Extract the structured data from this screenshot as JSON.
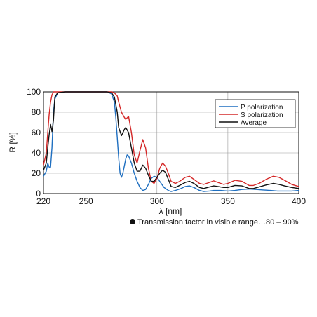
{
  "chart_data": {
    "type": "line",
    "title": "",
    "xlabel": "λ [nm]",
    "ylabel": "R [%]",
    "xlim": [
      220,
      400
    ],
    "ylim": [
      0,
      100
    ],
    "x_ticks": [
      "220",
      "250",
      "300",
      "350",
      "400"
    ],
    "y_ticks": [
      "0",
      "20",
      "40",
      "60",
      "80",
      "100"
    ],
    "grid": true,
    "legend_position": "top-right",
    "series": [
      {
        "name": "P polarization",
        "color": "#1f6fc0",
        "points": [
          [
            220,
            17
          ],
          [
            222,
            22
          ],
          [
            223,
            30
          ],
          [
            224,
            26
          ],
          [
            225,
            26
          ],
          [
            226,
            45
          ],
          [
            227,
            80
          ],
          [
            228,
            93
          ],
          [
            230,
            99
          ],
          [
            235,
            100
          ],
          [
            240,
            100
          ],
          [
            250,
            100
          ],
          [
            260,
            100
          ],
          [
            265,
            100
          ],
          [
            268,
            98
          ],
          [
            270,
            90
          ],
          [
            271,
            75
          ],
          [
            272,
            55
          ],
          [
            273,
            35
          ],
          [
            274,
            20
          ],
          [
            275,
            16
          ],
          [
            276,
            20
          ],
          [
            278,
            34
          ],
          [
            279,
            38
          ],
          [
            280,
            37
          ],
          [
            282,
            30
          ],
          [
            284,
            20
          ],
          [
            286,
            12
          ],
          [
            288,
            6
          ],
          [
            290,
            3
          ],
          [
            292,
            4
          ],
          [
            294,
            9
          ],
          [
            296,
            15
          ],
          [
            298,
            17
          ],
          [
            300,
            16
          ],
          [
            302,
            12
          ],
          [
            305,
            6
          ],
          [
            308,
            3
          ],
          [
            310,
            2
          ],
          [
            313,
            3
          ],
          [
            317,
            5
          ],
          [
            320,
            7
          ],
          [
            323,
            7.5
          ],
          [
            326,
            6
          ],
          [
            330,
            3
          ],
          [
            333,
            2
          ],
          [
            337,
            2.5
          ],
          [
            340,
            3
          ],
          [
            345,
            3
          ],
          [
            350,
            2.5
          ],
          [
            355,
            3
          ],
          [
            360,
            4
          ],
          [
            365,
            4.5
          ],
          [
            370,
            4
          ],
          [
            375,
            3.5
          ],
          [
            380,
            3
          ],
          [
            385,
            2.5
          ],
          [
            390,
            2.5
          ],
          [
            395,
            2.5
          ],
          [
            400,
            3
          ]
        ]
      },
      {
        "name": "S polarization",
        "color": "#d42828",
        "points": [
          [
            220,
            28
          ],
          [
            222,
            40
          ],
          [
            223,
            60
          ],
          [
            224,
            78
          ],
          [
            225,
            90
          ],
          [
            226,
            97
          ],
          [
            227,
            100
          ],
          [
            230,
            100
          ],
          [
            250,
            100
          ],
          [
            265,
            100
          ],
          [
            268,
            100
          ],
          [
            270,
            99
          ],
          [
            272,
            96
          ],
          [
            273,
            90
          ],
          [
            275,
            80
          ],
          [
            277,
            75
          ],
          [
            278,
            73
          ],
          [
            280,
            76
          ],
          [
            282,
            60
          ],
          [
            284,
            38
          ],
          [
            286,
            30
          ],
          [
            288,
            42
          ],
          [
            290,
            53
          ],
          [
            292,
            45
          ],
          [
            294,
            25
          ],
          [
            296,
            12
          ],
          [
            298,
            10
          ],
          [
            300,
            15
          ],
          [
            302,
            25
          ],
          [
            304,
            30
          ],
          [
            306,
            27
          ],
          [
            308,
            20
          ],
          [
            310,
            12
          ],
          [
            313,
            10
          ],
          [
            316,
            12
          ],
          [
            320,
            16
          ],
          [
            323,
            17
          ],
          [
            326,
            14
          ],
          [
            330,
            10
          ],
          [
            333,
            9
          ],
          [
            337,
            11
          ],
          [
            340,
            12.5
          ],
          [
            343,
            11
          ],
          [
            347,
            9
          ],
          [
            350,
            10
          ],
          [
            355,
            13
          ],
          [
            360,
            12
          ],
          [
            365,
            8
          ],
          [
            368,
            8
          ],
          [
            372,
            10
          ],
          [
            377,
            14
          ],
          [
            382,
            17
          ],
          [
            386,
            16
          ],
          [
            390,
            13
          ],
          [
            395,
            9
          ],
          [
            400,
            7
          ]
        ]
      },
      {
        "name": "Average",
        "color": "#111111",
        "points": [
          [
            220,
            23
          ],
          [
            222,
            30
          ],
          [
            223,
            45
          ],
          [
            224,
            58
          ],
          [
            225,
            68
          ],
          [
            226,
            61
          ],
          [
            227,
            72
          ],
          [
            228,
            95
          ],
          [
            230,
            99
          ],
          [
            235,
            100
          ],
          [
            250,
            100
          ],
          [
            265,
            100
          ],
          [
            268,
            99
          ],
          [
            270,
            95
          ],
          [
            272,
            80
          ],
          [
            273,
            65
          ],
          [
            275,
            57
          ],
          [
            277,
            63
          ],
          [
            278,
            65
          ],
          [
            280,
            60
          ],
          [
            282,
            45
          ],
          [
            284,
            30
          ],
          [
            286,
            22
          ],
          [
            288,
            22
          ],
          [
            290,
            28
          ],
          [
            292,
            25
          ],
          [
            294,
            18
          ],
          [
            296,
            12
          ],
          [
            298,
            12
          ],
          [
            300,
            16
          ],
          [
            302,
            20
          ],
          [
            304,
            23
          ],
          [
            306,
            21
          ],
          [
            308,
            14
          ],
          [
            310,
            7
          ],
          [
            313,
            6
          ],
          [
            316,
            8
          ],
          [
            320,
            11
          ],
          [
            323,
            12
          ],
          [
            326,
            10
          ],
          [
            330,
            6
          ],
          [
            333,
            5
          ],
          [
            337,
            6.5
          ],
          [
            340,
            7.5
          ],
          [
            343,
            7
          ],
          [
            347,
            6
          ],
          [
            350,
            6
          ],
          [
            355,
            8
          ],
          [
            360,
            7.5
          ],
          [
            365,
            5
          ],
          [
            368,
            5
          ],
          [
            372,
            6.5
          ],
          [
            377,
            8.5
          ],
          [
            382,
            10
          ],
          [
            386,
            9
          ],
          [
            390,
            7.5
          ],
          [
            395,
            6
          ],
          [
            400,
            5
          ]
        ]
      }
    ]
  },
  "note": "Transmission factor in visible range…80 – 90%"
}
